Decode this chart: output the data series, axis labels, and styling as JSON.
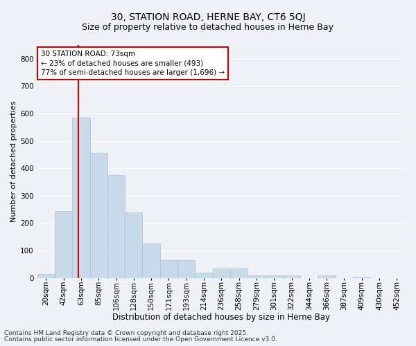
{
  "title": "30, STATION ROAD, HERNE BAY, CT6 5QJ",
  "subtitle": "Size of property relative to detached houses in Herne Bay",
  "xlabel": "Distribution of detached houses by size in Herne Bay",
  "ylabel": "Number of detached properties",
  "categories": [
    "20sqm",
    "42sqm",
    "63sqm",
    "85sqm",
    "106sqm",
    "128sqm",
    "150sqm",
    "171sqm",
    "193sqm",
    "214sqm",
    "236sqm",
    "258sqm",
    "279sqm",
    "301sqm",
    "322sqm",
    "344sqm",
    "366sqm",
    "387sqm",
    "409sqm",
    "430sqm",
    "452sqm"
  ],
  "values": [
    15,
    245,
    585,
    455,
    375,
    240,
    125,
    65,
    65,
    20,
    35,
    35,
    10,
    10,
    10,
    0,
    10,
    0,
    5,
    0,
    0
  ],
  "bar_color": "#c9daea",
  "bar_edge_color": "#aabfcf",
  "vline_color": "#cc0000",
  "annotation_text": "30 STATION ROAD: 73sqm\n← 23% of detached houses are smaller (493)\n77% of semi-detached houses are larger (1,696) →",
  "annotation_box_color": "#ffffff",
  "annotation_box_edge": "#cc0000",
  "ylim": [
    0,
    850
  ],
  "yticks": [
    0,
    100,
    200,
    300,
    400,
    500,
    600,
    700,
    800
  ],
  "background_color": "#eef2f7",
  "grid_color": "#ffffff",
  "footer_line1": "Contains HM Land Registry data © Crown copyright and database right 2025.",
  "footer_line2": "Contains public sector information licensed under the Open Government Licence v3.0.",
  "title_fontsize": 10,
  "subtitle_fontsize": 9,
  "tick_fontsize": 7.5,
  "xlabel_fontsize": 8.5,
  "ylabel_fontsize": 8,
  "footer_fontsize": 6.5
}
